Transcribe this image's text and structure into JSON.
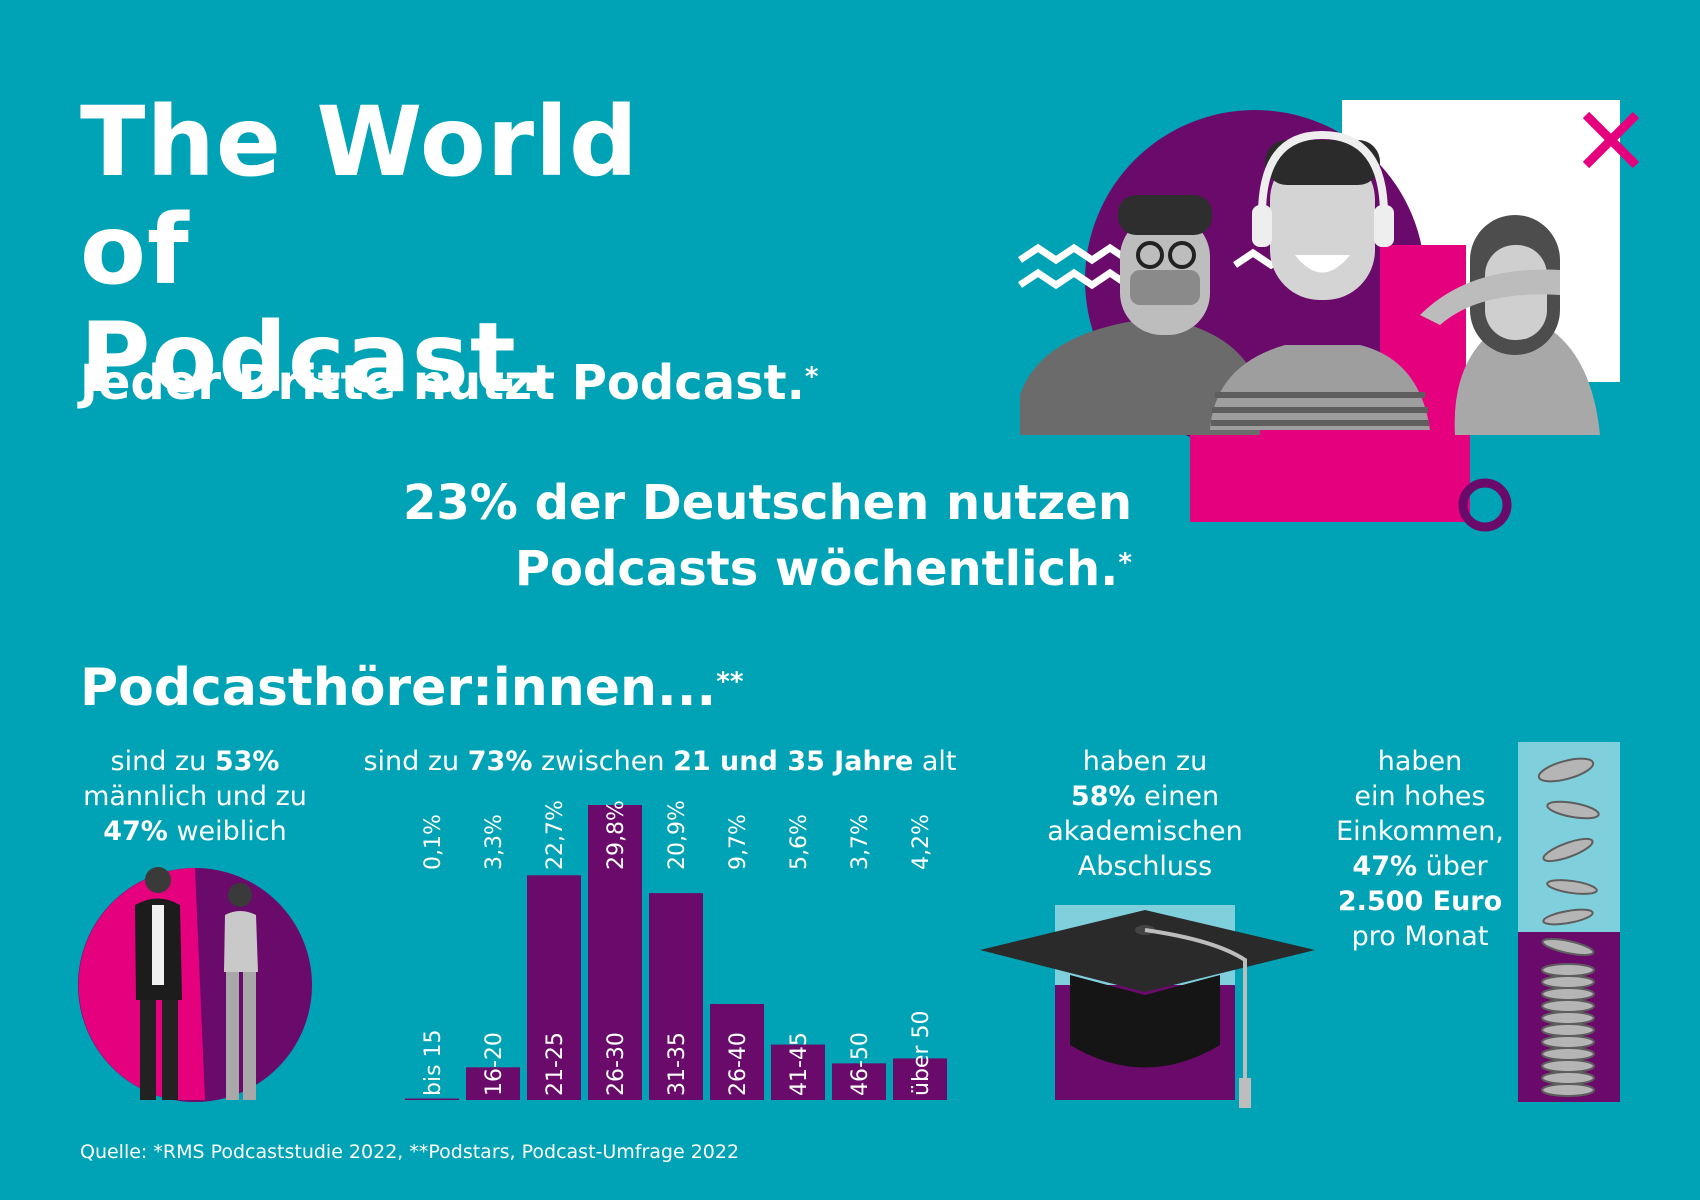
{
  "title": {
    "line1": "The World of",
    "line2": "Podcast."
  },
  "headline1": {
    "text": "Jeder Dritte nutzt Podcast.",
    "star": "*"
  },
  "headline2": {
    "line1": "23% der Deutschen nutzen",
    "line2": "Podcasts wöchentlich.",
    "star": "*"
  },
  "section_title": {
    "text": "Podcasthörer:innen...",
    "star": "**"
  },
  "gender": {
    "p1": "sind zu ",
    "v1": "53%",
    "p2": "männlich und zu",
    "v2": "47%",
    "p3": " weiblich"
  },
  "age_caption": {
    "p1": "sind zu ",
    "v1": "73%",
    "p2": " zwischen ",
    "v2": "21 und 35 Jahre",
    "p3": " alt"
  },
  "education": {
    "p1": "haben zu",
    "v1": "58%",
    "p2": " einen",
    "p3": "akademischen",
    "p4": "Abschluss"
  },
  "income": {
    "p1": "haben",
    "p2": "ein hohes",
    "p3": "Einkommen,",
    "v1": "47%",
    "p4": " über",
    "v2": "2.500 Euro",
    "p5": "pro Monat"
  },
  "source": "Quelle: *RMS Podcaststudie 2022, **Podstars, Podcast-Umfrage 2022",
  "colors": {
    "background": "#00a3b5",
    "purple": "#6a0b6b",
    "pink": "#e5007e",
    "light_cyan": "#7fd0dc",
    "white": "#ffffff"
  },
  "icons": {
    "gender": "man-woman-pie-icon",
    "education": "graduation-cap-icon",
    "income": "coin-stack-icon",
    "hero": "podcast-listeners-collage"
  },
  "chart_data": {
    "type": "bar",
    "categories": [
      "bis 15",
      "16-20",
      "21-25",
      "26-30",
      "31-35",
      "26-40",
      "41-45",
      "46-50",
      "über 50"
    ],
    "values": [
      0.1,
      3.3,
      22.7,
      29.8,
      20.9,
      9.7,
      5.6,
      3.7,
      4.2
    ],
    "value_labels": [
      "0,1%",
      "3,3%",
      "22,7%",
      "29,8%",
      "20,9%",
      "9,7%",
      "5,6%",
      "3,7%",
      "4,2%"
    ],
    "ylim": [
      0,
      29.8
    ],
    "grid": false,
    "color": "#6a0b6b"
  }
}
